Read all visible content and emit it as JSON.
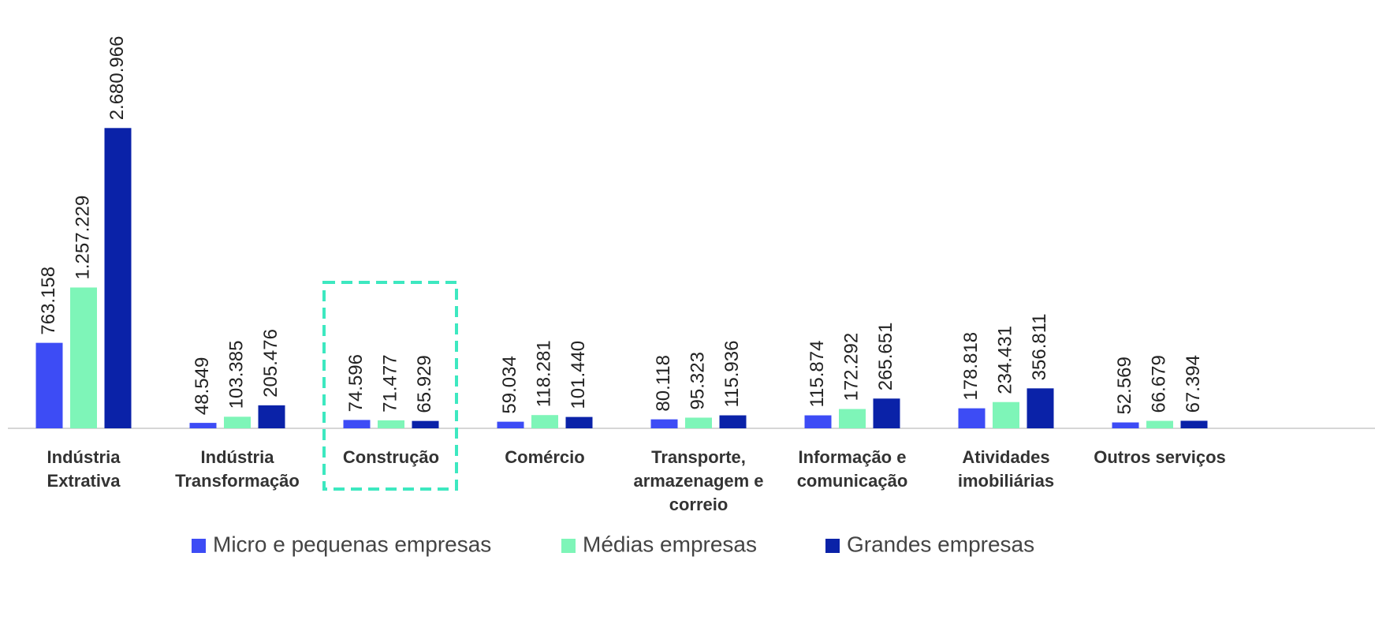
{
  "chart_data": {
    "type": "bar",
    "categories": [
      "Indústria Extrativa",
      "Indústria Transformação",
      "Construção",
      "Comércio",
      "Transporte, armazenagem e correio",
      "Informação e comunicação",
      "Atividades imobiliárias",
      "Outros serviços"
    ],
    "series": [
      {
        "name": "Micro e pequenas empresas",
        "color": "#3d4cf5",
        "values": [
          763158,
          48549,
          74596,
          59034,
          80118,
          115874,
          178818,
          52569
        ],
        "value_labels": [
          "763.158",
          "48.549",
          "74.596",
          "59.034",
          "80.118",
          "115.874",
          "178.818",
          "52.569"
        ]
      },
      {
        "name": "Médias empresas",
        "color": "#7ef5b8",
        "values": [
          1257229,
          103385,
          71477,
          118281,
          95323,
          172292,
          234431,
          66679
        ],
        "value_labels": [
          "1.257.229",
          "103.385",
          "71.477",
          "118.281",
          "95.323",
          "172.292",
          "234.431",
          "66.679"
        ]
      },
      {
        "name": "Grandes empresas",
        "color": "#0a22a8",
        "values": [
          2680966,
          205476,
          65929,
          101440,
          115936,
          265651,
          356811,
          67394
        ],
        "value_labels": [
          "2.680.966",
          "205.476",
          "65.929",
          "101.440",
          "115.936",
          "265.651",
          "356.811",
          "67.394"
        ]
      }
    ],
    "ylim": [
      0,
      3000000
    ]
  }
}
